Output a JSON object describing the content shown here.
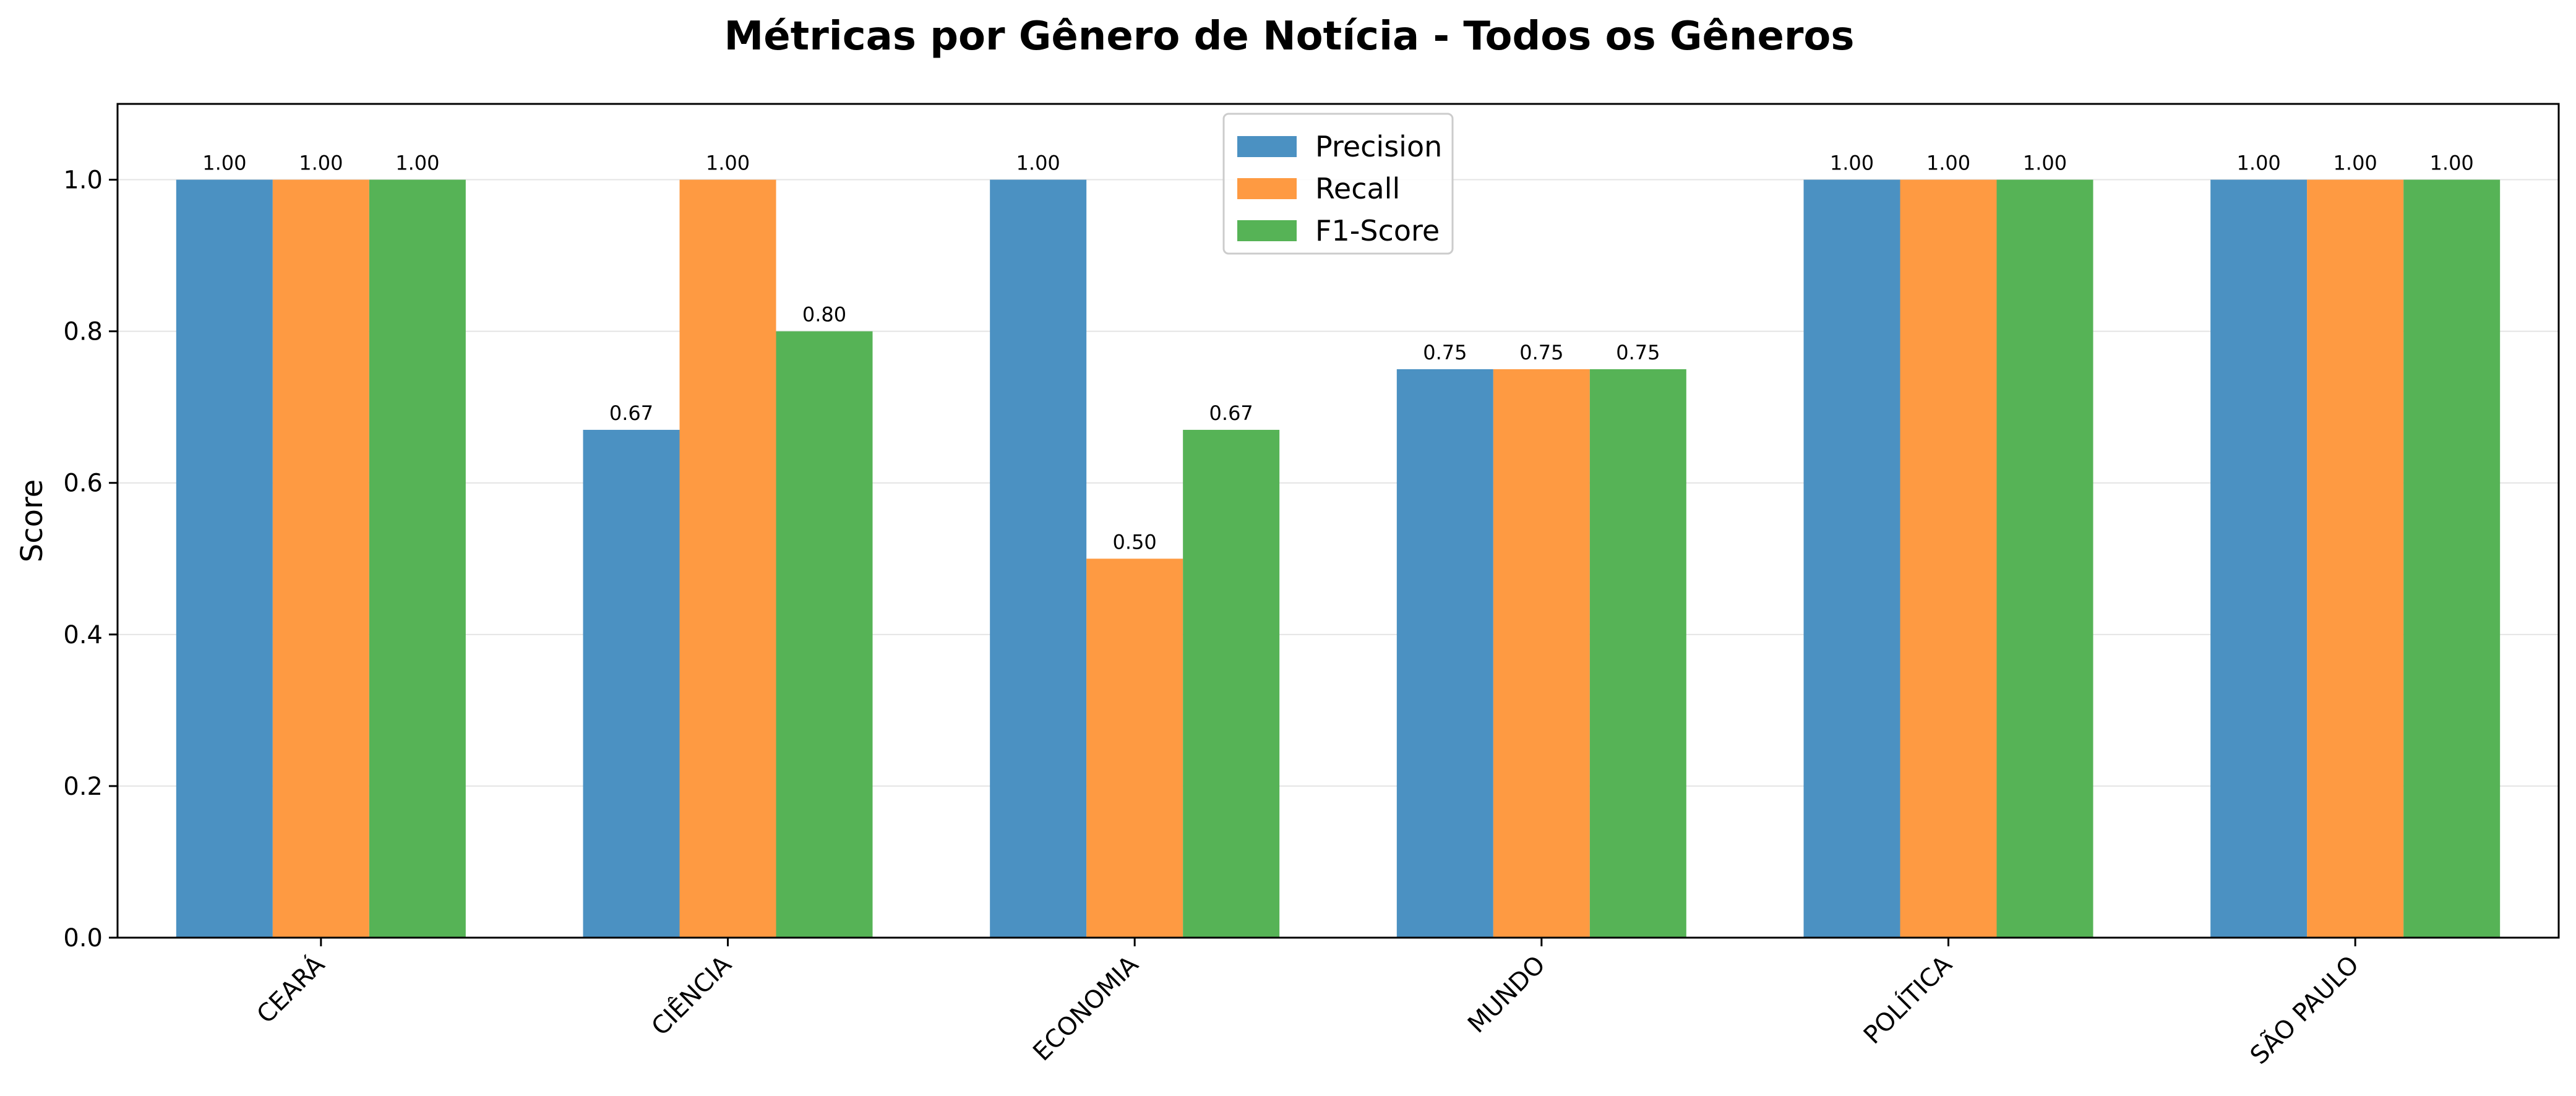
{
  "chart_data": {
    "type": "bar",
    "title": "Métricas por Gênero de Notícia - Todos os Gêneros",
    "xlabel": "",
    "ylabel": "Score",
    "ylim": [
      0,
      1.1
    ],
    "yticks": [
      "0.0",
      "0.2",
      "0.4",
      "0.6",
      "0.8",
      "1.0"
    ],
    "grid": "horizontal",
    "legend_position": "top-center",
    "categories": [
      "CEARÁ",
      "CIÊNCIA",
      "ECONOMIA",
      "MUNDO",
      "POLÍTICA",
      "SÃO PAULO"
    ],
    "series": [
      {
        "name": "Precision",
        "color": "#4b91c2",
        "values": [
          1.0,
          0.67,
          1.0,
          0.75,
          1.0,
          1.0
        ],
        "labels": [
          "1.00",
          "0.67",
          "1.00",
          "0.75",
          "1.00",
          "1.00"
        ]
      },
      {
        "name": "Recall",
        "color": "#fe9a42",
        "values": [
          1.0,
          1.0,
          0.5,
          0.75,
          1.0,
          1.0
        ],
        "labels": [
          "1.00",
          "1.00",
          "0.50",
          "0.75",
          "1.00",
          "1.00"
        ]
      },
      {
        "name": "F1-Score",
        "color": "#56b356",
        "values": [
          1.0,
          0.8,
          0.67,
          0.75,
          1.0,
          1.0
        ],
        "labels": [
          "1.00",
          "0.80",
          "0.67",
          "0.75",
          "1.00",
          "1.00"
        ]
      }
    ]
  }
}
